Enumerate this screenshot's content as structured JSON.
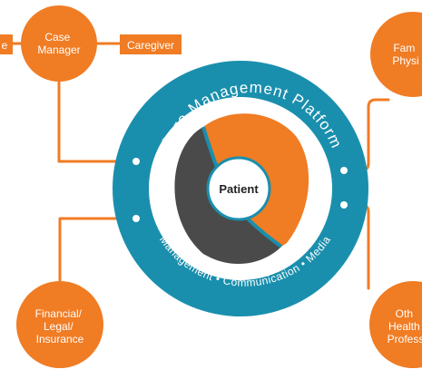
{
  "diagram": {
    "platform_title": "Care Management Platform",
    "platform_features": "Management • Communication • Media",
    "center": "Patient",
    "nodes": {
      "case_manager": [
        "Case",
        "Manager"
      ],
      "family_physician": [
        "Fam",
        "Physi"
      ],
      "financial": [
        "Financial/",
        "Legal/",
        "Insurance"
      ],
      "other_health": [
        "Oth",
        "Health",
        "Profess"
      ]
    },
    "tags": {
      "left_partial": "e",
      "caregiver": "Caregiver"
    },
    "colors": {
      "orange": "#f07c24",
      "teal": "#1a8fad",
      "dark_gray": "#4a4a4a",
      "white": "#ffffff"
    }
  }
}
